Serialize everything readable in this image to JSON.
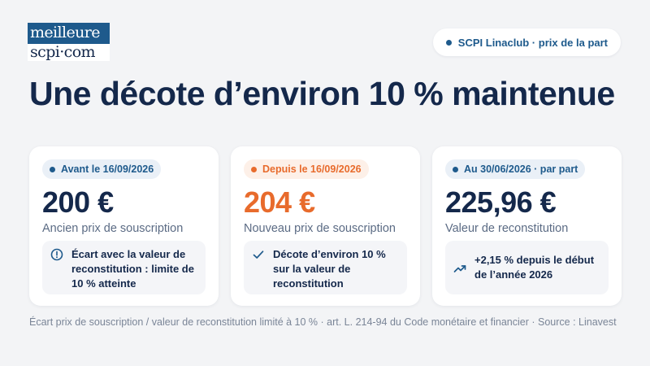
{
  "logo": {
    "line1": "meilleure",
    "line2": "scpi·com"
  },
  "header": {
    "pill_label": "SCPI Linaclub · prix de la part"
  },
  "title": "Une décote d’environ 10 % maintenue",
  "cards": [
    {
      "badge": "Avant le 16/09/2026",
      "value": "200 €",
      "label": "Ancien prix de souscription",
      "note": "Écart avec la valeur de reconstitution : limite de 10 % atteinte",
      "note_icon": "info-icon"
    },
    {
      "badge": "Depuis le 16/09/2026",
      "value": "204 €",
      "label": "Nouveau prix de souscription",
      "note": "Décote d’environ 10 % sur la valeur de reconstitution",
      "note_icon": "check-icon"
    },
    {
      "badge": "Au 30/06/2026 · par part",
      "value": "225,96 €",
      "label": "Valeur de reconstitution",
      "note": "+2,15 % depuis le début de l’année 2026",
      "note_icon": "trend-up-icon"
    }
  ],
  "footer": "Écart prix de souscription / valeur de reconstitution limité à 10 % · art. L. 214-94 du Code monétaire et financier · Source : Linavest",
  "colors": {
    "navy": "#14284b",
    "brand_blue": "#1e5a8c",
    "accent_orange": "#e86b2c",
    "muted_text": "#5b6b84",
    "background": "#f3f4f6"
  }
}
